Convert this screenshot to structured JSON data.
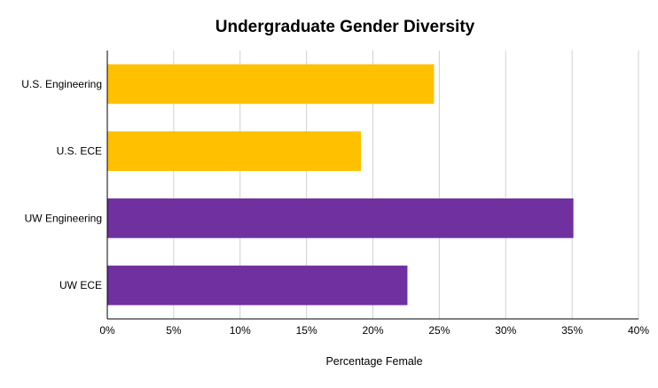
{
  "chart_data": {
    "type": "bar",
    "orientation": "horizontal",
    "title": "Undergraduate Gender Diversity",
    "xlabel": "Percentage Female",
    "ylabel": "",
    "categories": [
      "U.S. Engineering",
      "U.S. ECE",
      "UW Engineering",
      "UW ECE"
    ],
    "values": [
      24.6,
      19.1,
      35.1,
      22.6
    ],
    "bar_colors": [
      "#FFC000",
      "#FFC000",
      "#7030A0",
      "#7030A0"
    ],
    "xlim": [
      0,
      40
    ],
    "x_ticks": [
      "0%",
      "5%",
      "10%",
      "15%",
      "20%",
      "25%",
      "30%",
      "35%",
      "40%"
    ],
    "grid": "vertical",
    "legend": "none"
  }
}
